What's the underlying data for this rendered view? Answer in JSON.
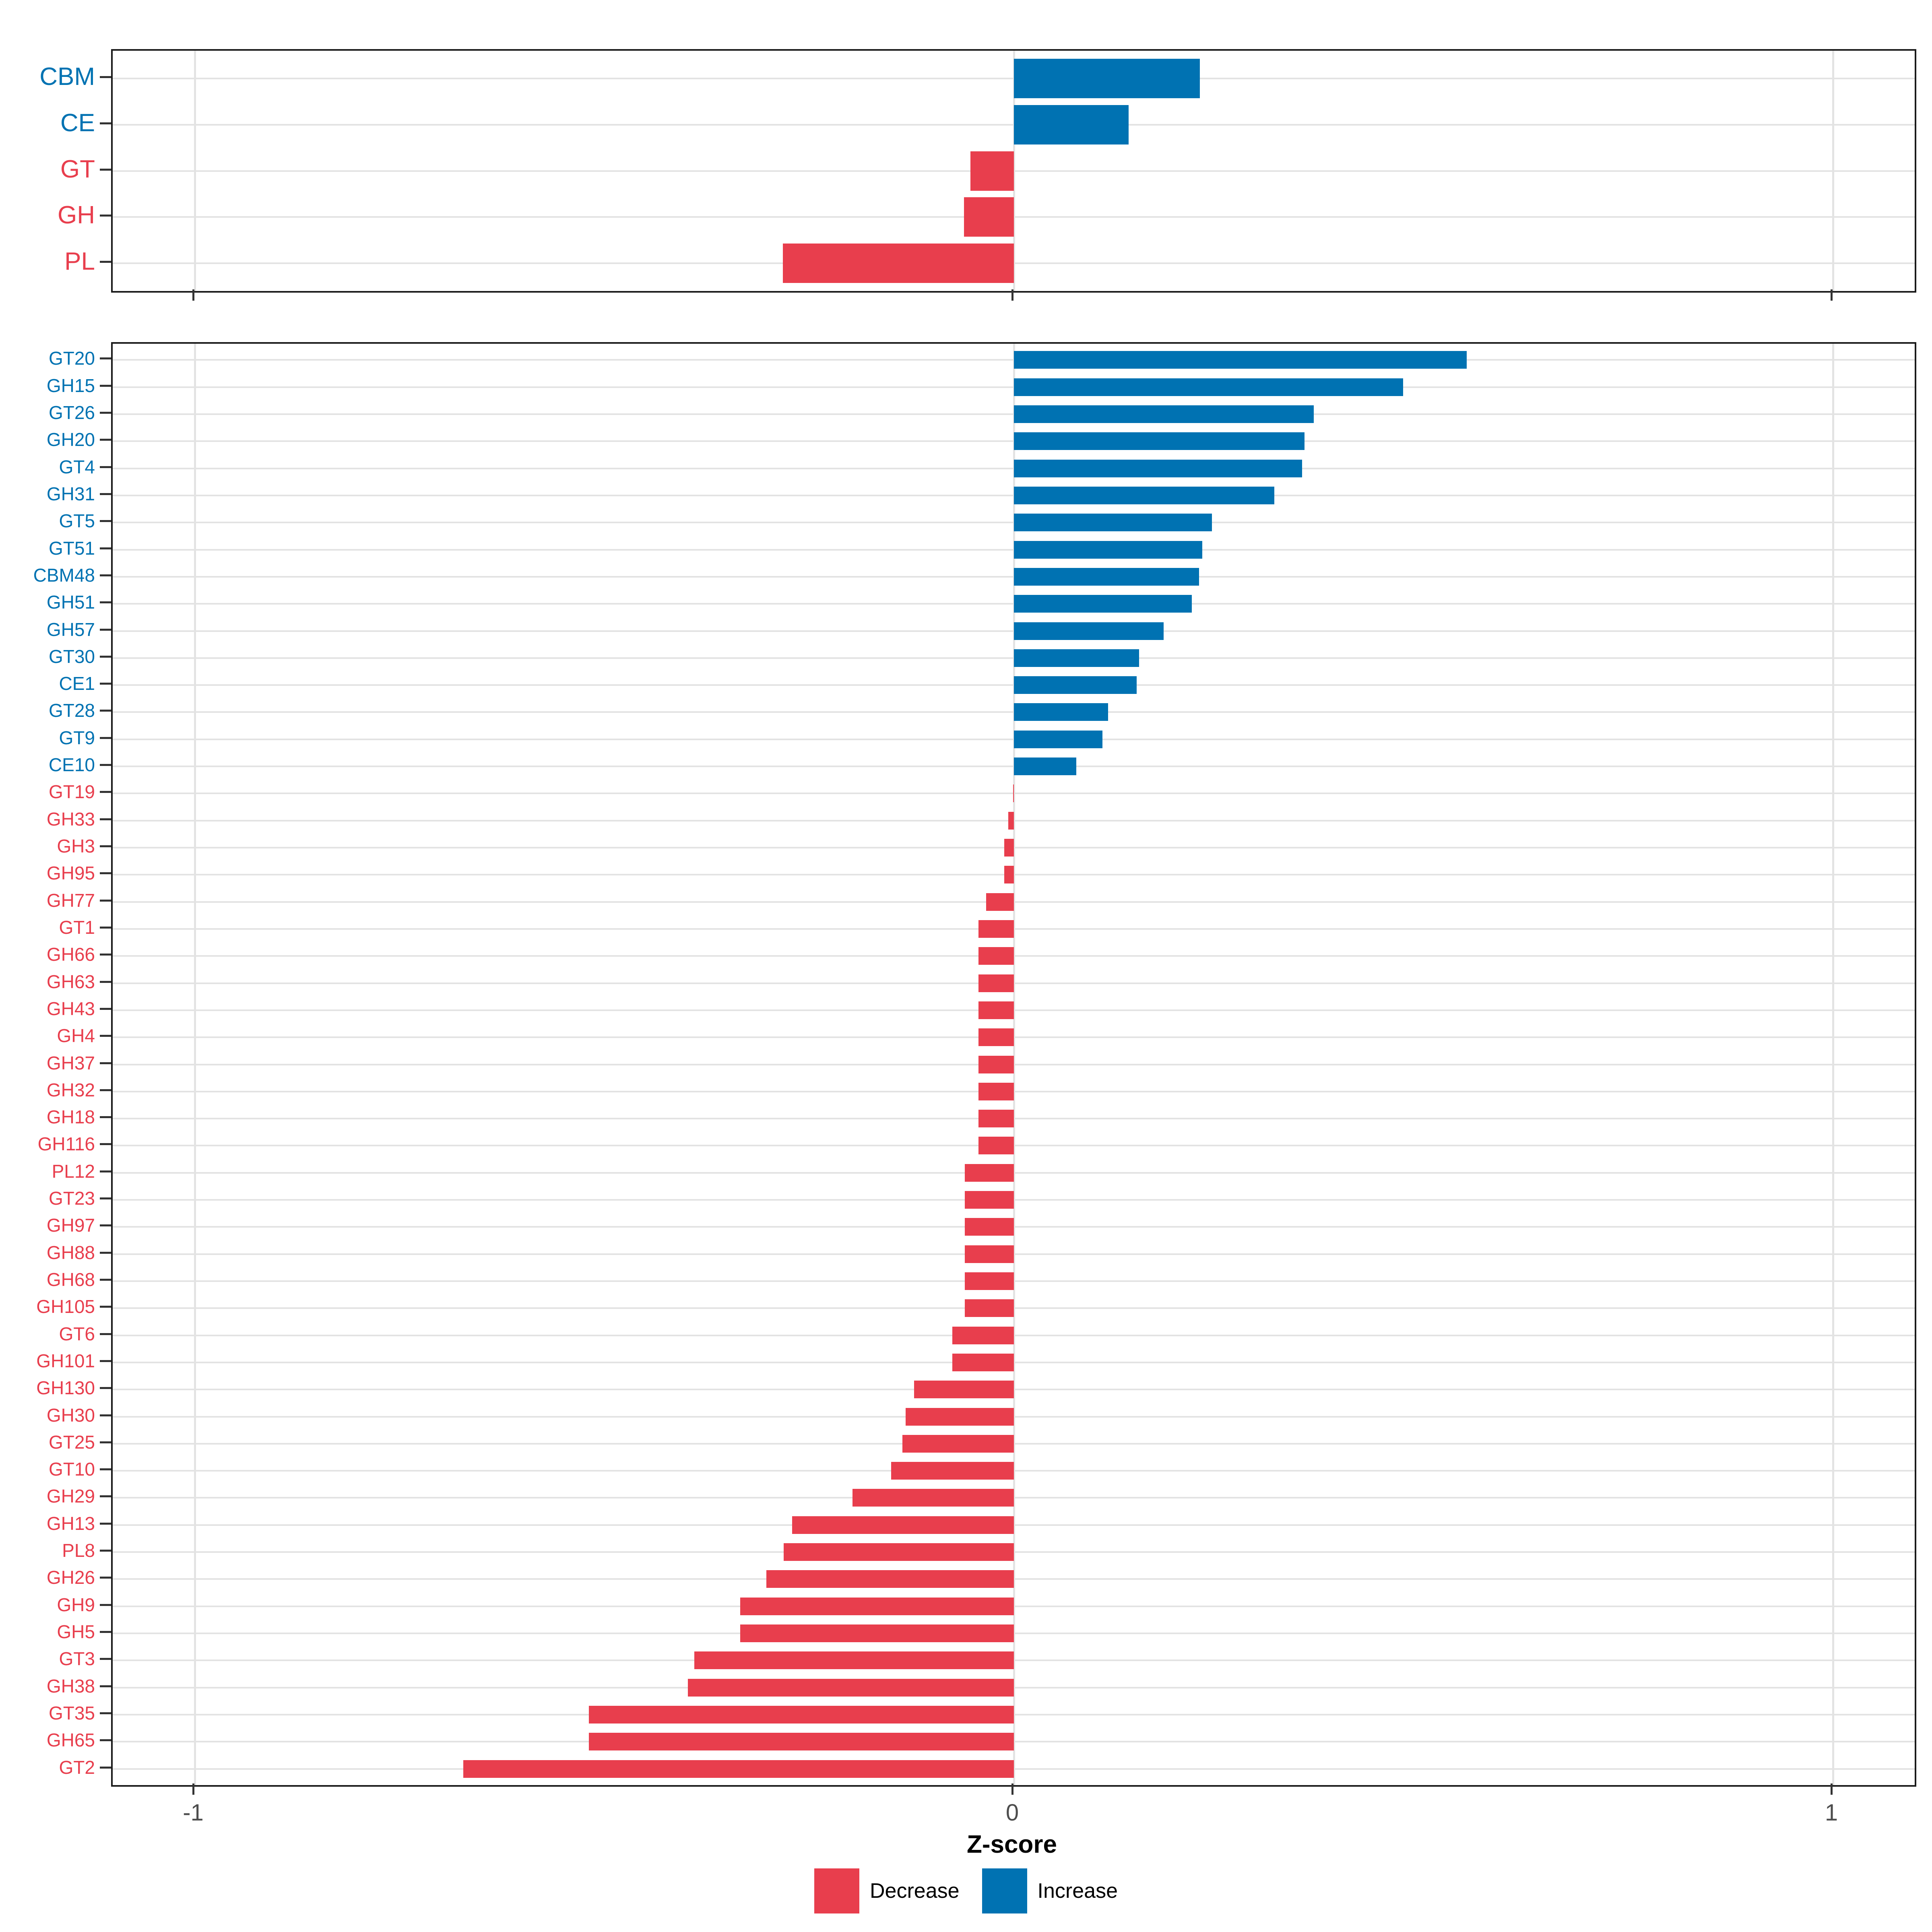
{
  "chart_data": {
    "type": "bar",
    "orientation": "horizontal",
    "title": "",
    "xlabel": "Z-score",
    "ylabel": "",
    "xlim": [
      -1.1,
      1.1
    ],
    "x_ticks": [
      -1,
      0,
      1
    ],
    "x_tick_labels": [
      "-1",
      "0",
      "1"
    ],
    "grid": "on",
    "legend_position": "bottom",
    "legend_labels": {
      "decrease": "Decrease",
      "increase": "Increase"
    },
    "colors": {
      "decrease": "#E83E4D",
      "increase": "#0072B2"
    },
    "panels": [
      {
        "name": "enzyme-classes",
        "categories": [
          "CBM",
          "CE",
          "GT",
          "GH",
          "PL"
        ],
        "values": [
          0.227,
          0.14,
          -0.053,
          -0.061,
          -0.282
        ]
      },
      {
        "name": "enzyme-families",
        "categories": [
          "GT20",
          "GH15",
          "GT26",
          "GH20",
          "GT4",
          "GH31",
          "GT5",
          "GT51",
          "CBM48",
          "GH51",
          "GH57",
          "GT30",
          "CE1",
          "GT28",
          "GT9",
          "CE10",
          "GT19",
          "GH33",
          "GH3",
          "GH95",
          "GH77",
          "GT1",
          "GH66",
          "GH63",
          "GH43",
          "GH4",
          "GH37",
          "GH32",
          "GH18",
          "GH116",
          "PL12",
          "GT23",
          "GH97",
          "GH88",
          "GH68",
          "GH105",
          "GT6",
          "GH101",
          "GH130",
          "GH30",
          "GT25",
          "GT10",
          "GH29",
          "GH13",
          "PL8",
          "GH26",
          "GH9",
          "GH5",
          "GT3",
          "GH38",
          "GT35",
          "GH65",
          "GT2"
        ],
        "values": [
          0.553,
          0.475,
          0.366,
          0.355,
          0.352,
          0.318,
          0.242,
          0.23,
          0.226,
          0.217,
          0.183,
          0.153,
          0.15,
          0.115,
          0.108,
          0.076,
          -0.001,
          -0.007,
          -0.012,
          -0.012,
          -0.034,
          -0.043,
          -0.043,
          -0.043,
          -0.043,
          -0.043,
          -0.043,
          -0.043,
          -0.043,
          -0.043,
          -0.06,
          -0.06,
          -0.06,
          -0.06,
          -0.06,
          -0.06,
          -0.075,
          -0.075,
          -0.122,
          -0.132,
          -0.136,
          -0.15,
          -0.197,
          -0.271,
          -0.281,
          -0.302,
          -0.334,
          -0.334,
          -0.39,
          -0.398,
          -0.519,
          -0.519,
          -0.672
        ]
      }
    ]
  }
}
